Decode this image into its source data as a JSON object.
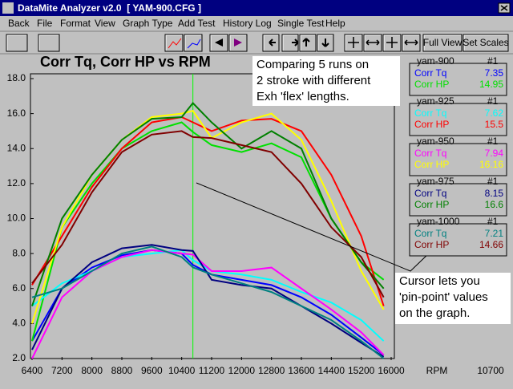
{
  "window": {
    "title": "DataMite Analyzer v2.0  [ YAM-900.CFG ]"
  },
  "menu": [
    "Back",
    "File",
    "Format",
    "View",
    "Graph Type",
    "Add Test",
    "History Log",
    "Single Test",
    "Help"
  ],
  "toolbar": [
    "Full View",
    "Set Scales"
  ],
  "chart_data": {
    "type": "line",
    "title": "Corr Tq, Corr HP vs RPM",
    "annotations": [
      [
        "Comparing 5 runs on",
        "2 stroke with different",
        "Exh 'flex' lengths."
      ],
      [
        "Cursor lets you",
        "'pin-point' values",
        "on the graph."
      ]
    ],
    "x_label": "RPM",
    "cursor": 10700,
    "x": [
      6400,
      7200,
      8000,
      8800,
      9600,
      10400,
      10700,
      11200,
      12000,
      12800,
      13600,
      14400,
      15200,
      15800
    ],
    "xlim": [
      6400,
      16000
    ],
    "xticks": [
      6400,
      7200,
      8000,
      8800,
      9600,
      10400,
      11200,
      12000,
      12800,
      13600,
      14400,
      15200,
      16000
    ],
    "ylim": [
      2,
      18
    ],
    "yticks": [
      {
        "value": 2,
        "label": "2.0"
      },
      {
        "value": 4,
        "label": "4.0"
      },
      {
        "value": 6,
        "label": "6.0"
      },
      {
        "value": 8,
        "label": "8.0"
      },
      {
        "value": 10,
        "label": "10.0"
      },
      {
        "value": 12,
        "label": "12.0"
      },
      {
        "value": 14,
        "label": "14.0"
      },
      {
        "value": 16,
        "label": "16.0"
      },
      {
        "value": 18,
        "label": "18.0"
      }
    ],
    "grid": false,
    "legend_groups": [
      {
        "name": "yam-900",
        "tag": "#1"
      },
      {
        "name": "yam-925",
        "tag": "#1"
      },
      {
        "name": "yam-950",
        "tag": "#1"
      },
      {
        "name": "yam-975",
        "tag": "#1"
      },
      {
        "name": "yam-1000",
        "tag": "#1"
      }
    ],
    "series": [
      {
        "name": "Corr Tq",
        "color": "#0000ff",
        "cursor_value": 7.35,
        "values": [
          3.0,
          6.0,
          7.2,
          7.9,
          8.2,
          8.0,
          7.35,
          6.8,
          6.5,
          6.2,
          5.5,
          4.5,
          3.2,
          2.2
        ]
      },
      {
        "name": "Corr HP",
        "color": "#00e000",
        "cursor_value": 14.95,
        "values": [
          3.0,
          9.5,
          12.0,
          14.0,
          15.0,
          15.5,
          14.95,
          14.2,
          13.8,
          14.3,
          13.5,
          10.0,
          7.5,
          6.5
        ]
      },
      {
        "name": "Corr Tq",
        "color": "#00ffff",
        "cursor_value": 7.62,
        "values": [
          5.0,
          6.3,
          7.0,
          7.8,
          8.0,
          8.2,
          7.62,
          7.0,
          6.8,
          6.5,
          5.8,
          5.2,
          4.2,
          3.0
        ]
      },
      {
        "name": "Corr HP",
        "color": "#ff0000",
        "cursor_value": 15.5,
        "values": [
          6.2,
          9.0,
          11.8,
          14.0,
          15.5,
          15.8,
          15.5,
          15.0,
          15.6,
          15.7,
          15.0,
          12.5,
          9.0,
          5.0
        ]
      },
      {
        "name": "Corr Tq",
        "color": "#ff00ff",
        "cursor_value": 7.94,
        "values": [
          2.0,
          5.5,
          7.0,
          7.8,
          8.2,
          8.0,
          7.94,
          7.0,
          7.0,
          7.2,
          6.0,
          4.8,
          3.5,
          2.2
        ]
      },
      {
        "name": "Corr HP",
        "color": "#ffff00",
        "cursor_value": 16.16,
        "values": [
          4.0,
          9.5,
          12.5,
          14.5,
          15.8,
          16.0,
          16.16,
          14.6,
          15.5,
          16.0,
          14.5,
          11.0,
          7.0,
          4.8
        ]
      },
      {
        "name": "Corr Tq",
        "color": "#000080",
        "cursor_value": 8.15,
        "values": [
          2.5,
          6.0,
          7.5,
          8.3,
          8.5,
          8.2,
          8.15,
          6.5,
          6.2,
          6.0,
          5.0,
          4.0,
          2.9,
          2.1
        ]
      },
      {
        "name": "Corr HP",
        "color": "#008000",
        "cursor_value": 16.6,
        "values": [
          5.0,
          10.0,
          12.5,
          14.5,
          15.7,
          15.8,
          16.6,
          15.5,
          14.0,
          15.0,
          14.0,
          10.0,
          7.5,
          6.0
        ]
      },
      {
        "name": "Corr Tq",
        "color": "#008080",
        "cursor_value": 7.21,
        "values": [
          5.5,
          6.0,
          7.0,
          8.0,
          8.4,
          7.8,
          7.21,
          6.8,
          6.3,
          5.8,
          5.0,
          4.2,
          3.0,
          2.0
        ]
      },
      {
        "name": "Corr HP",
        "color": "#800000",
        "cursor_value": 14.66,
        "values": [
          6.3,
          8.5,
          11.5,
          13.8,
          14.8,
          15.0,
          14.66,
          14.6,
          14.2,
          13.8,
          12.0,
          9.5,
          7.8,
          5.5
        ]
      }
    ]
  }
}
